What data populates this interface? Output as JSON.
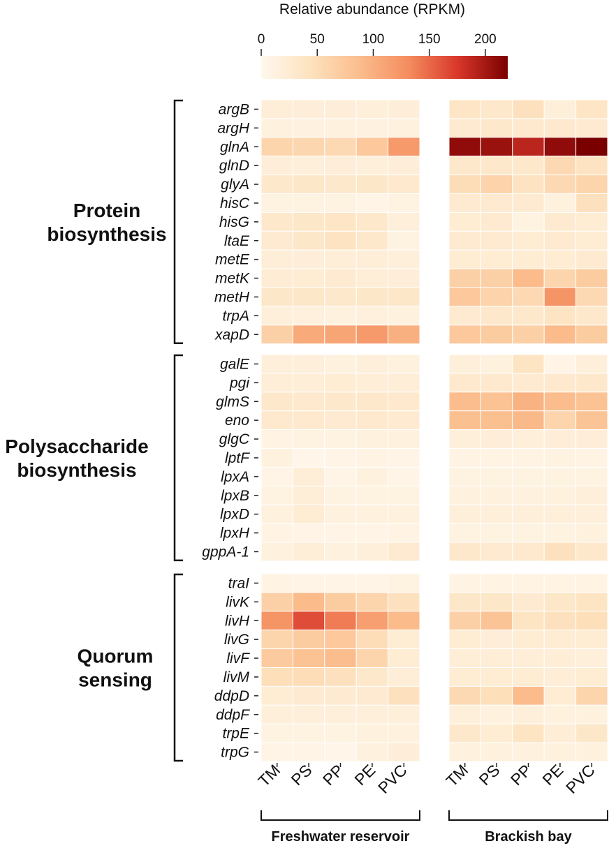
{
  "chart_data": {
    "type": "heatmap",
    "colorbar": {
      "title": "Relative abundance (RPKM)",
      "ticks": [
        0,
        50,
        100,
        150,
        200
      ],
      "range": [
        0,
        220
      ],
      "colors": [
        "#fff8ee",
        "#fde2bf",
        "#fbbd8d",
        "#f48c5e",
        "#d8362a",
        "#7a0000"
      ]
    },
    "columns": [
      "TM",
      "PS",
      "PP",
      "PE",
      "PVC"
    ],
    "panels": [
      {
        "name": "Freshwater reservoir"
      },
      {
        "name": "Brackish bay"
      }
    ],
    "groups": [
      {
        "name": "Protein\nbiosynthesis",
        "genes": [
          "argB",
          "argH",
          "glnA",
          "glnD",
          "glyA",
          "hisC",
          "hisG",
          "ltaE",
          "metE",
          "metK",
          "metH",
          "trpA",
          "xapD"
        ],
        "freshwater": [
          [
            22,
            20,
            20,
            18,
            20
          ],
          [
            15,
            14,
            15,
            14,
            15
          ],
          [
            60,
            58,
            55,
            75,
            120
          ],
          [
            20,
            18,
            20,
            18,
            20
          ],
          [
            32,
            35,
            32,
            35,
            30
          ],
          [
            12,
            12,
            12,
            8,
            12
          ],
          [
            32,
            35,
            38,
            32,
            18
          ],
          [
            28,
            35,
            42,
            32,
            12
          ],
          [
            22,
            20,
            22,
            22,
            18
          ],
          [
            24,
            25,
            28,
            22,
            20
          ],
          [
            35,
            35,
            32,
            35,
            35
          ],
          [
            18,
            16,
            15,
            16,
            15
          ],
          [
            65,
            105,
            110,
            120,
            100
          ]
        ],
        "brackish": [
          [
            38,
            32,
            45,
            18,
            38
          ],
          [
            28,
            32,
            30,
            30,
            28
          ],
          [
            210,
            205,
            190,
            210,
            220
          ],
          [
            32,
            32,
            32,
            55,
            42
          ],
          [
            50,
            62,
            42,
            55,
            60
          ],
          [
            28,
            28,
            28,
            15,
            45
          ],
          [
            25,
            28,
            12,
            28,
            25
          ],
          [
            28,
            28,
            25,
            28,
            25
          ],
          [
            25,
            25,
            25,
            25,
            28
          ],
          [
            65,
            65,
            90,
            60,
            70
          ],
          [
            75,
            62,
            55,
            125,
            55
          ],
          [
            28,
            32,
            32,
            40,
            32
          ],
          [
            75,
            70,
            65,
            90,
            70
          ]
        ]
      },
      {
        "name": "Polysaccharide\nbiosynthesis",
        "genes": [
          "galE",
          "pgi",
          "glmS",
          "eno",
          "glgC",
          "lptF",
          "lpxA",
          "lpxB",
          "lpxD",
          "lpxH",
          "gppA-1"
        ],
        "freshwater": [
          [
            18,
            18,
            15,
            18,
            15
          ],
          [
            22,
            22,
            25,
            22,
            22
          ],
          [
            32,
            30,
            32,
            32,
            30
          ],
          [
            30,
            30,
            28,
            30,
            28
          ],
          [
            10,
            12,
            12,
            15,
            15
          ],
          [
            15,
            5,
            8,
            10,
            8
          ],
          [
            8,
            22,
            8,
            15,
            8
          ],
          [
            12,
            22,
            12,
            12,
            12
          ],
          [
            15,
            25,
            15,
            15,
            15
          ],
          [
            10,
            8,
            8,
            8,
            10
          ],
          [
            15,
            22,
            15,
            18,
            28
          ]
        ],
        "brackish": [
          [
            18,
            15,
            40,
            8,
            18
          ],
          [
            30,
            30,
            28,
            30,
            32
          ],
          [
            88,
            82,
            98,
            88,
            82
          ],
          [
            85,
            85,
            92,
            60,
            80
          ],
          [
            18,
            20,
            18,
            20,
            20
          ],
          [
            10,
            10,
            10,
            12,
            10
          ],
          [
            12,
            12,
            12,
            12,
            12
          ],
          [
            15,
            15,
            15,
            15,
            18
          ],
          [
            18,
            18,
            18,
            18,
            18
          ],
          [
            12,
            12,
            12,
            12,
            15
          ],
          [
            32,
            28,
            30,
            45,
            32
          ]
        ]
      },
      {
        "name": "Quorum\nsensing",
        "genes": [
          "traI",
          "livK",
          "livH",
          "livG",
          "livF",
          "livM",
          "ddpD",
          "ddpF",
          "trpE",
          "trpG"
        ],
        "freshwater": [
          [
            10,
            8,
            8,
            8,
            12
          ],
          [
            65,
            90,
            70,
            60,
            45
          ],
          [
            125,
            165,
            140,
            115,
            90
          ],
          [
            60,
            70,
            75,
            50,
            25
          ],
          [
            72,
            82,
            88,
            60,
            25
          ],
          [
            48,
            50,
            45,
            32,
            22
          ],
          [
            25,
            28,
            28,
            28,
            45
          ],
          [
            18,
            18,
            18,
            18,
            18
          ],
          [
            12,
            12,
            12,
            15,
            15
          ],
          [
            8,
            8,
            5,
            15,
            20
          ]
        ],
        "brackish": [
          [
            10,
            10,
            10,
            10,
            10
          ],
          [
            35,
            35,
            28,
            35,
            40
          ],
          [
            65,
            80,
            40,
            45,
            48
          ],
          [
            25,
            20,
            25,
            25,
            25
          ],
          [
            22,
            22,
            22,
            22,
            18
          ],
          [
            25,
            25,
            25,
            22,
            25
          ],
          [
            55,
            48,
            90,
            25,
            60
          ],
          [
            18,
            15,
            18,
            15,
            15
          ],
          [
            32,
            25,
            40,
            22,
            35
          ],
          [
            15,
            15,
            15,
            15,
            15
          ]
        ]
      }
    ]
  }
}
